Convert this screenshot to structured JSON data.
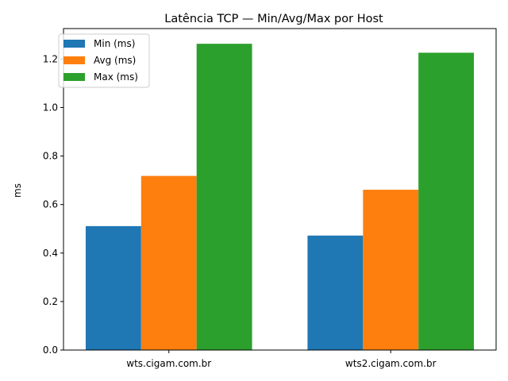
{
  "chart_data": {
    "type": "bar",
    "title": "Latência TCP — Min/Avg/Max por Host",
    "xlabel": "",
    "ylabel": "ms",
    "categories": [
      "wts.cigam.com.br",
      "wts2.cigam.com.br"
    ],
    "series": [
      {
        "name": "Min (ms)",
        "values": [
          0.511,
          0.472
        ],
        "color": "#1f77b4"
      },
      {
        "name": "Avg (ms)",
        "values": [
          0.718,
          0.661
        ],
        "color": "#ff7f0e"
      },
      {
        "name": "Max (ms)",
        "values": [
          1.263,
          1.226
        ],
        "color": "#2ca02c"
      }
    ],
    "ylim": [
      0,
      1.3256
    ],
    "yticks": [
      0.0,
      0.2,
      0.4,
      0.6,
      0.8,
      1.0,
      1.2
    ],
    "ytick_labels": [
      "0.0",
      "0.2",
      "0.4",
      "0.6",
      "0.8",
      "1.0",
      "1.2"
    ],
    "grid": false,
    "legend_position": "top-left"
  }
}
